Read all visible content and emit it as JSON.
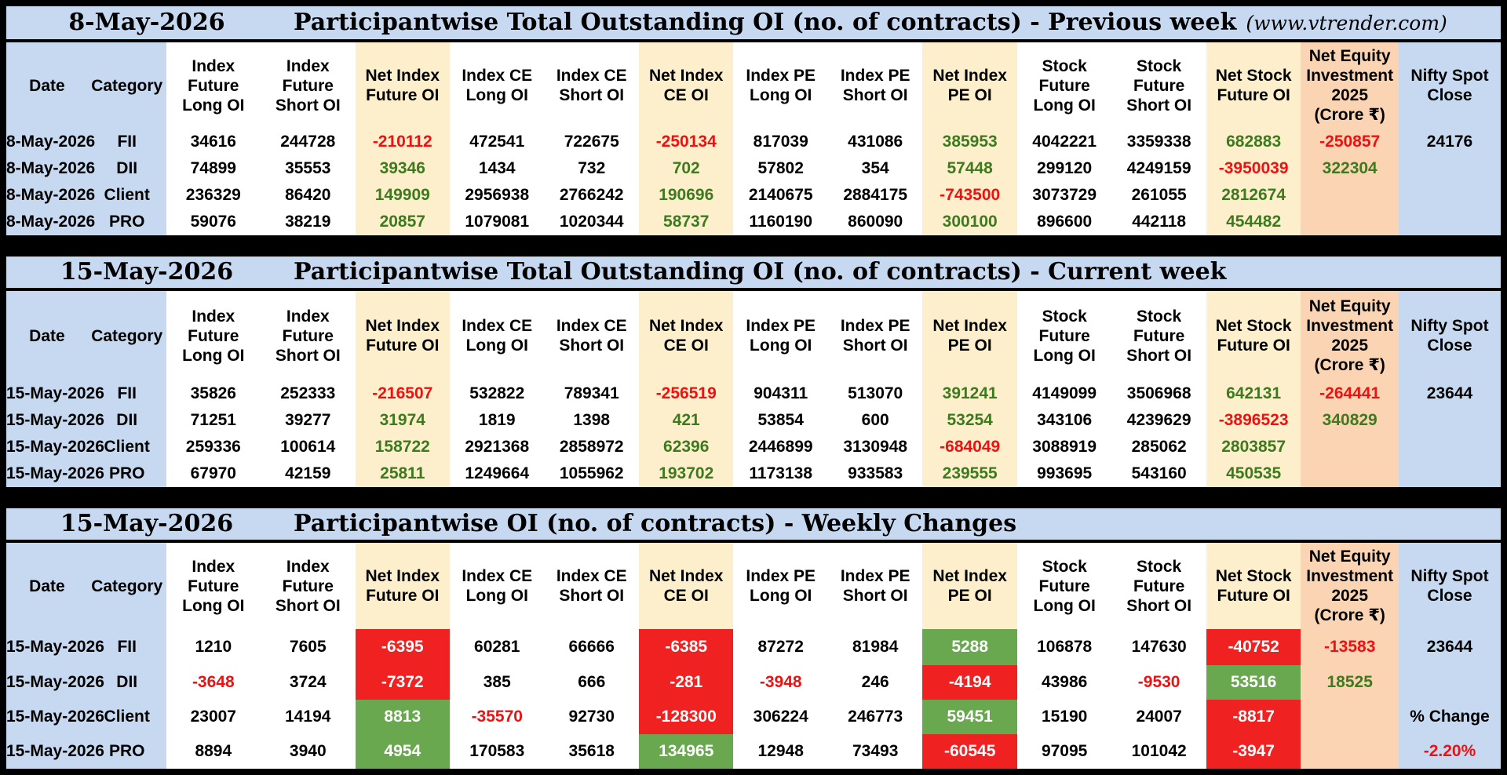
{
  "columns": [
    "Date",
    "Category",
    "Index Future Long OI",
    "Index Future Short OI",
    "Net Index Future OI",
    "Index CE Long OI",
    "Index CE Short OI",
    "Net Index CE OI",
    "Index PE Long OI",
    "Index PE Short OI",
    "Net Index PE OI",
    "Stock Future Long OI",
    "Stock Future Short OI",
    "Net Stock Future OI",
    "Net Equity Investment 2025 (Crore ₹)",
    "Nifty Spot Close"
  ],
  "sections": [
    {
      "date": "8-May-2026",
      "title": "Participantwise Total Outstanding OI (no. of contracts) - Previous week",
      "site": "(www.vtrender.com)",
      "rows": [
        {
          "date": "8-May-2026",
          "cat": "FII",
          "v": [
            "34616",
            "244728",
            "-210112",
            "472541",
            "722675",
            "-250134",
            "817039",
            "431086",
            "385953",
            "4042221",
            "3359338",
            "682883",
            "-250857",
            "24176"
          ]
        },
        {
          "date": "8-May-2026",
          "cat": "DII",
          "v": [
            "74899",
            "35553",
            "39346",
            "1434",
            "732",
            "702",
            "57802",
            "354",
            "57448",
            "299120",
            "4249159",
            "-3950039",
            "322304",
            ""
          ]
        },
        {
          "date": "8-May-2026",
          "cat": "Client",
          "v": [
            "236329",
            "86420",
            "149909",
            "2956938",
            "2766242",
            "190696",
            "2140675",
            "2884175",
            "-743500",
            "3073729",
            "261055",
            "2812674",
            "",
            ""
          ]
        },
        {
          "date": "8-May-2026",
          "cat": "PRO",
          "v": [
            "59076",
            "38219",
            "20857",
            "1079081",
            "1020344",
            "58737",
            "1160190",
            "860090",
            "300100",
            "896600",
            "442118",
            "454482",
            "",
            ""
          ]
        }
      ]
    },
    {
      "date": "15-May-2026",
      "title": "Participantwise Total Outstanding OI (no. of contracts) - Current week",
      "site": "",
      "rows": [
        {
          "date": "15-May-2026",
          "cat": "FII",
          "v": [
            "35826",
            "252333",
            "-216507",
            "532822",
            "789341",
            "-256519",
            "904311",
            "513070",
            "391241",
            "4149099",
            "3506968",
            "642131",
            "-264441",
            "23644"
          ]
        },
        {
          "date": "15-May-2026",
          "cat": "DII",
          "v": [
            "71251",
            "39277",
            "31974",
            "1819",
            "1398",
            "421",
            "53854",
            "600",
            "53254",
            "343106",
            "4239629",
            "-3896523",
            "340829",
            ""
          ]
        },
        {
          "date": "15-May-2026",
          "cat": "Client",
          "v": [
            "259336",
            "100614",
            "158722",
            "2921368",
            "2858972",
            "62396",
            "2446899",
            "3130948",
            "-684049",
            "3088919",
            "285062",
            "2803857",
            "",
            ""
          ]
        },
        {
          "date": "15-May-2026",
          "cat": "PRO",
          "v": [
            "67970",
            "42159",
            "25811",
            "1249664",
            "1055962",
            "193702",
            "1173138",
            "933583",
            "239555",
            "993695",
            "543160",
            "450535",
            "",
            ""
          ]
        }
      ]
    },
    {
      "date": "15-May-2026",
      "title": "Participantwise OI (no. of contracts) - Weekly Changes",
      "site": "",
      "rows": [
        {
          "date": "15-May-2026",
          "cat": "FII",
          "v": [
            "1210",
            "7605",
            "-6395",
            "60281",
            "66666",
            "-6385",
            "87272",
            "81984",
            "5288",
            "106878",
            "147630",
            "-40752",
            "-13583",
            "23644"
          ]
        },
        {
          "date": "15-May-2026",
          "cat": "DII",
          "v": [
            "-3648",
            "3724",
            "-7372",
            "385",
            "666",
            "-281",
            "-3948",
            "246",
            "-4194",
            "43986",
            "-9530",
            "53516",
            "18525",
            ""
          ]
        },
        {
          "date": "15-May-2026",
          "cat": "Client",
          "v": [
            "23007",
            "14194",
            "8813",
            "-35570",
            "92730",
            "-128300",
            "306224",
            "246773",
            "59451",
            "15190",
            "24007",
            "-8817",
            "",
            "% Change"
          ]
        },
        {
          "date": "15-May-2026",
          "cat": "PRO",
          "v": [
            "8894",
            "3940",
            "4954",
            "170583",
            "35618",
            "134965",
            "12948",
            "73493",
            "-60545",
            "97095",
            "101042",
            "-3947",
            "",
            "-2.20%"
          ]
        }
      ]
    }
  ],
  "colors": {
    "header_blue": "#c6d9f1",
    "net_cream": "#fdefcc",
    "equity_peach": "#fbd4b4",
    "negative_red": "#ee1111",
    "positive_green": "#3d7a1e",
    "cell_red": "#ef2121",
    "cell_green": "#6aa84f"
  }
}
